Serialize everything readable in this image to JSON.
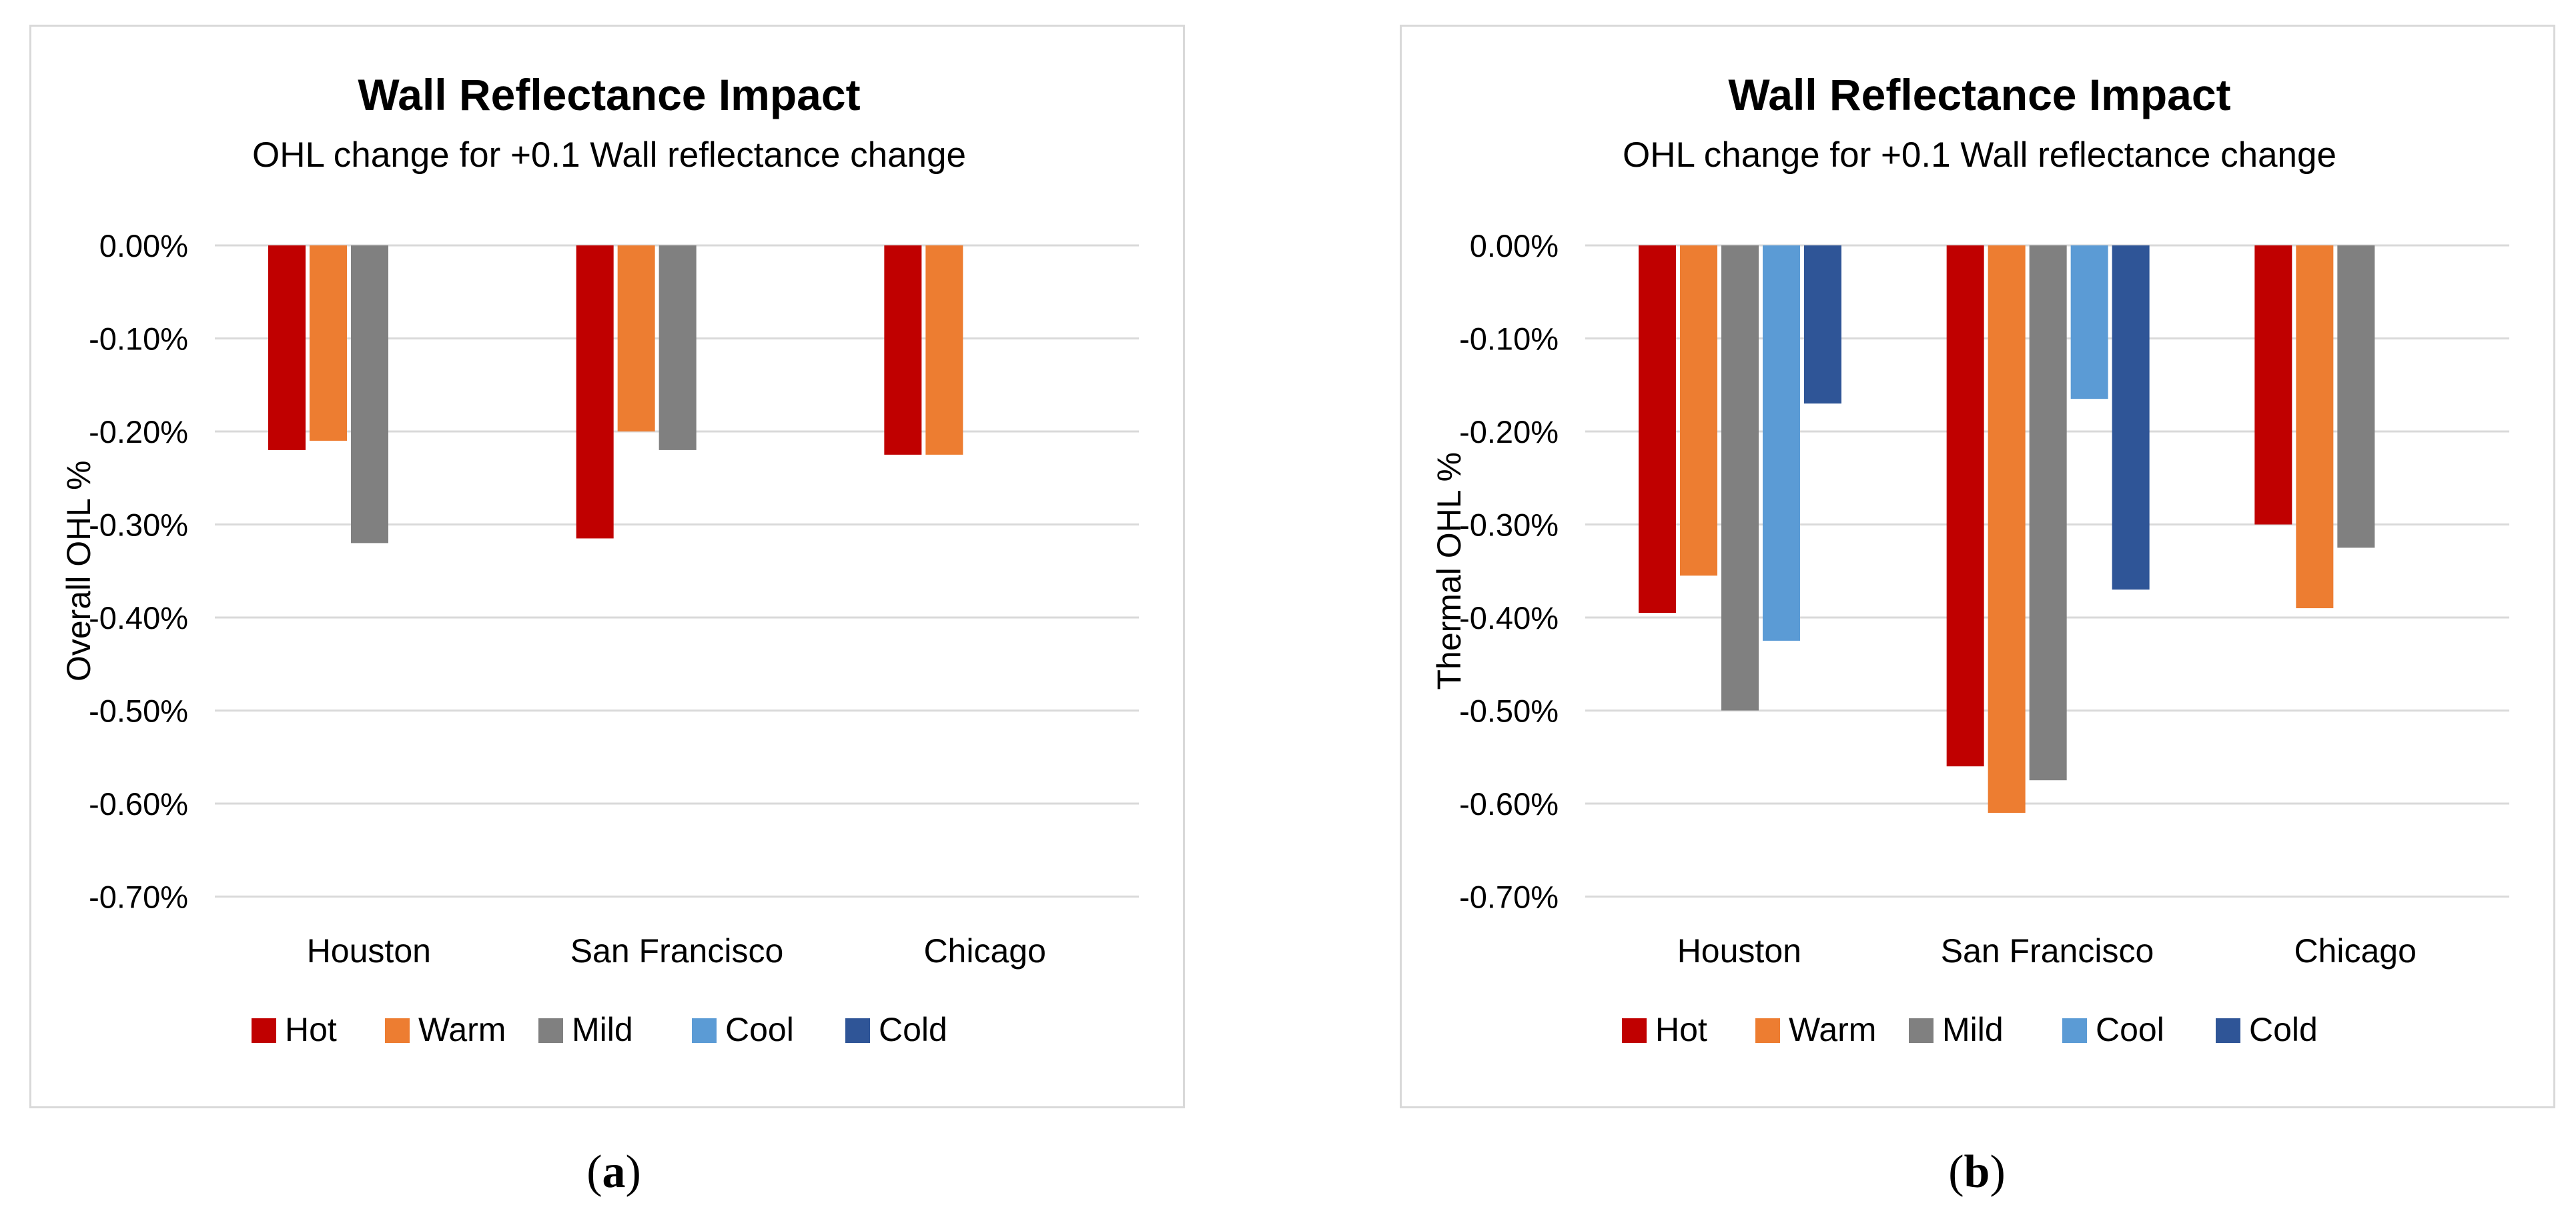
{
  "chart_data": [
    {
      "type": "bar",
      "title": "Wall Reflectance Impact",
      "subtitle": "OHL change for +0.1 Wall reflectance change",
      "xlabel": "",
      "ylabel": "Overall OHL %",
      "ylim": [
        -0.7,
        0.0
      ],
      "yticks": [
        "0.00%",
        "-0.10%",
        "-0.20%",
        "-0.30%",
        "-0.40%",
        "-0.50%",
        "-0.60%",
        "-0.70%"
      ],
      "categories": [
        "Houston",
        "San Francisco",
        "Chicago"
      ],
      "legend_position": "bottom",
      "series": [
        {
          "name": "Hot",
          "color": "#c00000",
          "values": [
            -0.22,
            -0.315,
            -0.225
          ]
        },
        {
          "name": "Warm",
          "color": "#ed7d31",
          "values": [
            -0.21,
            -0.2,
            -0.225
          ]
        },
        {
          "name": "Mild",
          "color": "#808080",
          "values": [
            -0.32,
            -0.22,
            null
          ]
        },
        {
          "name": "Cool",
          "color": "#5b9bd5",
          "values": [
            null,
            null,
            null
          ]
        },
        {
          "name": "Cold",
          "color": "#2f5597",
          "values": [
            null,
            null,
            null
          ]
        }
      ],
      "caption": "a"
    },
    {
      "type": "bar",
      "title": "Wall Reflectance Impact",
      "subtitle": "OHL change for +0.1 Wall reflectance change",
      "xlabel": "",
      "ylabel": "Thermal OHL %",
      "ylim": [
        -0.7,
        0.0
      ],
      "yticks": [
        "0.00%",
        "-0.10%",
        "-0.20%",
        "-0.30%",
        "-0.40%",
        "-0.50%",
        "-0.60%",
        "-0.70%"
      ],
      "categories": [
        "Houston",
        "San Francisco",
        "Chicago"
      ],
      "legend_position": "bottom",
      "series": [
        {
          "name": "Hot",
          "color": "#c00000",
          "values": [
            -0.395,
            -0.56,
            -0.3
          ]
        },
        {
          "name": "Warm",
          "color": "#ed7d31",
          "values": [
            -0.355,
            -0.61,
            -0.39
          ]
        },
        {
          "name": "Mild",
          "color": "#808080",
          "values": [
            -0.5,
            -0.575,
            -0.325
          ]
        },
        {
          "name": "Cool",
          "color": "#5b9bd5",
          "values": [
            -0.425,
            -0.165,
            null
          ]
        },
        {
          "name": "Cold",
          "color": "#2f5597",
          "values": [
            -0.17,
            -0.37,
            null
          ]
        }
      ],
      "caption": "b"
    }
  ]
}
